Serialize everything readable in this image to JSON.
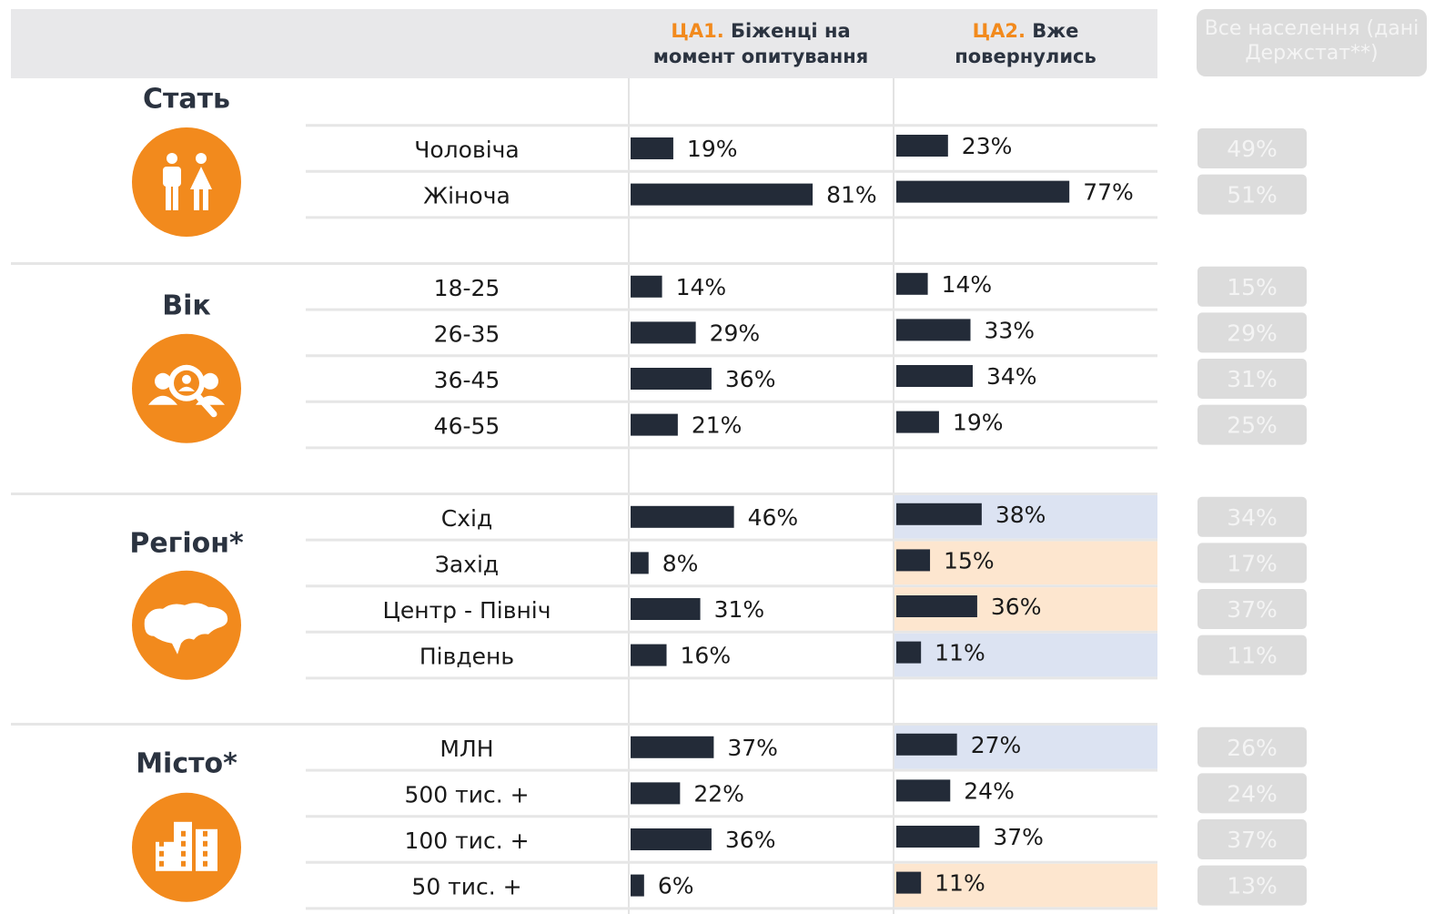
{
  "chart_data": {
    "type": "bar-table",
    "columns": [
      {
        "prefix": "ЦА1.",
        "title": "Біженці на момент опитування"
      },
      {
        "prefix": "ЦА2.",
        "title": "Вже повернулись"
      }
    ],
    "population_header": "Все населення (дані Держстат**)",
    "xlim": [
      0,
      100
    ],
    "bar_color": "#232b38",
    "accent_color": "#f28a1d",
    "groups": [
      {
        "name": "Стать",
        "rows": [
          {
            "label": "Чоловіча",
            "values": [
              19,
              23,
              49
            ],
            "value_labels": [
              "19%",
              "23%",
              "49%"
            ],
            "highlight": null
          },
          {
            "label": "Жіноча",
            "values": [
              81,
              77,
              51
            ],
            "value_labels": [
              "81%",
              "77%",
              "51%"
            ],
            "highlight": null
          }
        ]
      },
      {
        "name": "Вік",
        "rows": [
          {
            "label": "18-25",
            "values": [
              14,
              14,
              15
            ],
            "value_labels": [
              "14%",
              "14%",
              "15%"
            ],
            "highlight": null
          },
          {
            "label": "26-35",
            "values": [
              29,
              33,
              29
            ],
            "value_labels": [
              "29%",
              "33%",
              "29%"
            ],
            "highlight": null
          },
          {
            "label": "36-45",
            "values": [
              36,
              34,
              31
            ],
            "value_labels": [
              "36%",
              "34%",
              "31%"
            ],
            "highlight": null
          },
          {
            "label": "46-55",
            "values": [
              21,
              19,
              25
            ],
            "value_labels": [
              "21%",
              "19%",
              "25%"
            ],
            "highlight": null
          }
        ]
      },
      {
        "name": "Регіон*",
        "rows": [
          {
            "label": "Схід",
            "values": [
              46,
              38,
              34
            ],
            "value_labels": [
              "46%",
              "38%",
              "34%"
            ],
            "highlight": "#dce3f2"
          },
          {
            "label": "Захід",
            "values": [
              8,
              15,
              17
            ],
            "value_labels": [
              "8%",
              "15%",
              "17%"
            ],
            "highlight": "#fde6cf"
          },
          {
            "label": "Центр - Північ",
            "values": [
              31,
              36,
              37
            ],
            "value_labels": [
              "31%",
              "36%",
              "37%"
            ],
            "highlight": "#fde6cf"
          },
          {
            "label": "Південь",
            "values": [
              16,
              11,
              11
            ],
            "value_labels": [
              "16%",
              "11%",
              "11%"
            ],
            "highlight": "#dce3f2"
          }
        ]
      },
      {
        "name": "Місто*",
        "rows": [
          {
            "label": "МЛН",
            "values": [
              37,
              27,
              26
            ],
            "value_labels": [
              "37%",
              "27%",
              "26%"
            ],
            "highlight": "#dce3f2"
          },
          {
            "label": "500 тис. +",
            "values": [
              22,
              24,
              24
            ],
            "value_labels": [
              "22%",
              "24%",
              "24%"
            ],
            "highlight": null
          },
          {
            "label": "100 тис. +",
            "values": [
              36,
              37,
              37
            ],
            "value_labels": [
              "36%",
              "37%",
              "37%"
            ],
            "highlight": null
          },
          {
            "label": "50 тис. +",
            "values": [
              6,
              11,
              13
            ],
            "value_labels": [
              "6%",
              "11%",
              "13%"
            ],
            "highlight": "#fde6cf"
          }
        ]
      }
    ]
  }
}
